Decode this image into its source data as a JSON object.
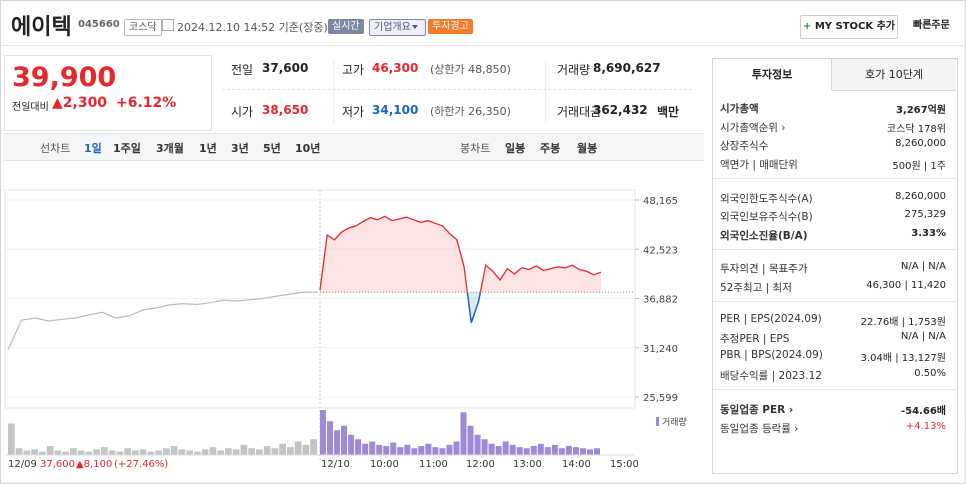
{
  "header": {
    "name": "에이텍",
    "code": "045660",
    "market": "코스닥",
    "datetime": "2024.12.10 14:52 기준(장중)",
    "badges": [
      "실시간",
      "기업개요",
      "투자경고"
    ],
    "buttons": [
      "MY STOCK 추가",
      "빠른주문"
    ]
  },
  "price": {
    "current": "39,900",
    "change_label": "전일대비",
    "change": "▲2,300",
    "change_pct": "+6.12%"
  },
  "stats": [
    [
      {
        "label": "전일",
        "value": "37,600"
      },
      {
        "label": "고가",
        "value": "46,300",
        "note": "(상한가 48,850)"
      },
      {
        "label": "거래량",
        "value": "8,690,627"
      }
    ],
    [
      {
        "label": "시가",
        "value": "38,650"
      },
      {
        "label": "저가",
        "value": "34,100",
        "note": "(하한가 26,350)"
      },
      {
        "label": "거래대금",
        "value": "362,432",
        "unit": "백만"
      }
    ]
  ],
  "chart_tabs": {
    "line_label": "선차트",
    "line_periods": [
      "1일",
      "1주일",
      "3개월",
      "1년",
      "3년",
      "5년",
      "10년"
    ],
    "candle_label": "봉차트",
    "candle_periods": [
      "일봉",
      "주봉",
      "월봉"
    ]
  },
  "chart_data": {
    "type": "line",
    "ylim": [
      24340,
      49310
    ],
    "yticks": [
      {
        "value": 48165,
        "label": "48,165"
      },
      {
        "value": 42523,
        "label": "42,523"
      },
      {
        "value": 36882,
        "label": "36,882"
      },
      {
        "value": 31240,
        "label": "31,240"
      },
      {
        "value": 25599,
        "label": "25,599"
      }
    ],
    "x_labels": [
      "12/09",
      "12/10",
      "10:00",
      "11:00",
      "12:00",
      "13:00",
      "14:00",
      "15:00"
    ],
    "baseline": 37600,
    "series": [
      {
        "color": "#bbbbbb",
        "values": [
          31000,
          34400,
          34650,
          34300,
          34500,
          34650,
          35000,
          35300,
          34650,
          34900,
          35570,
          35800,
          36150,
          36300,
          36200,
          36400,
          36700,
          36600,
          36750,
          36900,
          37170,
          37400,
          37630,
          37600
        ]
      },
      {
        "color": "#e8262b",
        "below_color": "#1a62c9",
        "values": [
          37860,
          44150,
          43600,
          44500,
          44960,
          45200,
          45700,
          46150,
          45900,
          46300,
          45800,
          46000,
          46200,
          45900,
          45600,
          45800,
          45500,
          45200,
          44300,
          43600,
          40500,
          34100,
          36500,
          40700,
          40000,
          39000,
          40300,
          39700,
          40400,
          40200,
          40600,
          40100,
          40300,
          40500,
          40400,
          40700,
          40200,
          40000,
          39600,
          39900
        ]
      }
    ],
    "volume_label": "거래량",
    "volume": [
      {
        "color": "#c4c4c4",
        "values": [
          28,
          6,
          4,
          5,
          3,
          8,
          4,
          3,
          6,
          4,
          3,
          5,
          7,
          4,
          3,
          6,
          4,
          5,
          3,
          4,
          6,
          8,
          5,
          4,
          3,
          5,
          7,
          4,
          6,
          5,
          9,
          6,
          5,
          8,
          6,
          10,
          7,
          12,
          9,
          14
        ]
      },
      {
        "color": "#9f8ad8",
        "values": [
          40,
          30,
          22,
          26,
          18,
          14,
          10,
          12,
          9,
          8,
          11,
          7,
          9,
          6,
          8,
          10,
          7,
          6,
          9,
          12,
          38,
          26,
          18,
          14,
          10,
          8,
          12,
          9,
          7,
          6,
          8,
          10,
          7,
          9,
          6,
          8,
          7,
          6,
          5,
          6
        ]
      }
    ],
    "prev_summary": {
      "price": "37,600",
      "change": "▲8,100",
      "pct": "(+27.46%)"
    }
  },
  "info_panel": {
    "tabs": [
      "투자정보",
      "호가 10단계"
    ],
    "groups": [
      [
        {
          "label": "시가총액",
          "value": "3,267억원"
        },
        {
          "label": "시가총액순위 ›",
          "value": "코스닥 178위"
        },
        {
          "label": "상장주식수",
          "value": "8,260,000"
        },
        {
          "label": "액면가 | 매매단위",
          "value": "500원 | 1주"
        }
      ],
      [
        {
          "label": "외국인한도주식수(A)",
          "value": "8,260,000"
        },
        {
          "label": "외국인보유주식수(B)",
          "value": "275,329"
        },
        {
          "label": "외국인소진율(B/A)",
          "value": "3.33%"
        }
      ],
      [
        {
          "label": "투자의견 | 목표주가",
          "value": "N/A | N/A"
        },
        {
          "label": "52주최고 | 최저",
          "value": "46,300 | 11,420"
        }
      ],
      [
        {
          "label": "PER | EPS(2024.09)",
          "value": "22.76배 | 1,753원"
        },
        {
          "label": "추정PER | EPS",
          "value": "N/A | N/A"
        },
        {
          "label": "PBR | BPS(2024.09)",
          "value": "3.04배 | 13,127원"
        },
        {
          "label": "배당수익률 | 2023.12",
          "value": "0.50%"
        }
      ],
      [
        {
          "label": "동일업종 PER ›",
          "value": "-54.66배"
        },
        {
          "label": "동일업종 등락률 ›",
          "value": "+4.13%"
        }
      ]
    ]
  }
}
